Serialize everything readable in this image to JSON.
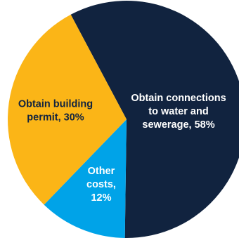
{
  "chart_data": {
    "type": "pie",
    "title": "",
    "slices": [
      {
        "label_lines": [
          "Obtain connections",
          "to water and",
          "sewerage, 58%"
        ],
        "value": 58,
        "color": "#11233f",
        "label_color": "#ffffff"
      },
      {
        "label_lines": [
          "Other",
          "costs,",
          "12%"
        ],
        "value": 12,
        "color": "#00a3e8",
        "label_color": "#ffffff"
      },
      {
        "label_lines": [
          "Obtain building",
          "permit, 30%"
        ],
        "value": 30,
        "color": "#fbb517",
        "label_color": "#11233f"
      }
    ],
    "start_angle_deg": 332,
    "direction": "clockwise",
    "legend": "none (labels on slices)"
  }
}
